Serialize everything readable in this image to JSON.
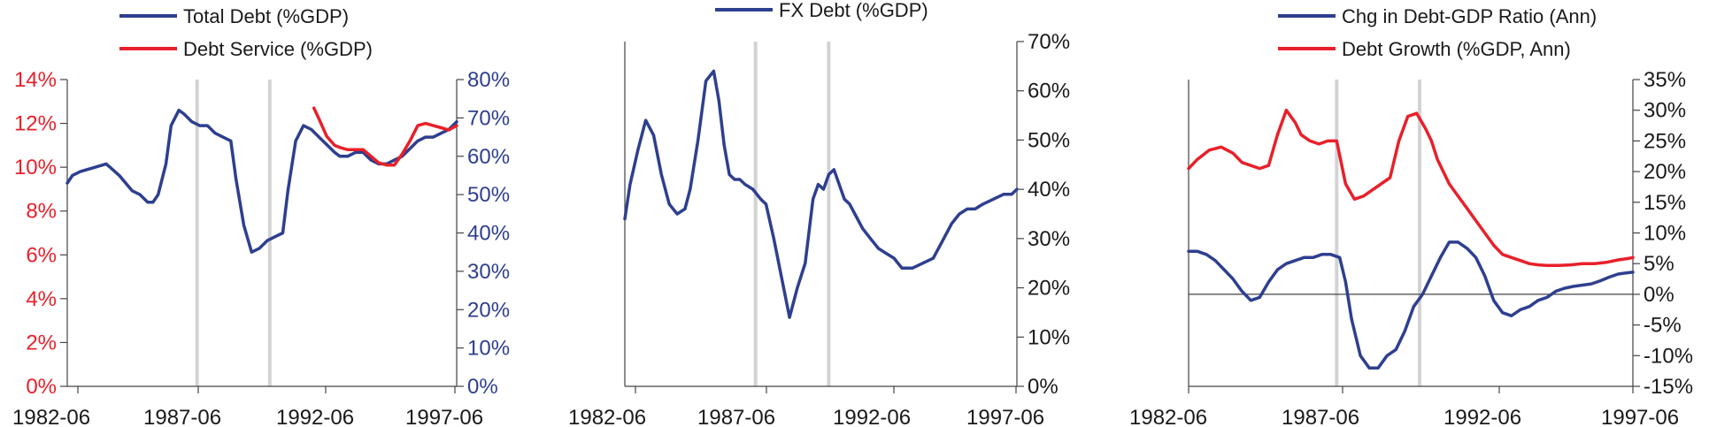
{
  "colors": {
    "blue": "#2E3F8F",
    "red": "#E8202A",
    "axis": "#444444",
    "recession": "#d3d3d3",
    "text": "#1a1a1a"
  },
  "chart_data": [
    {
      "type": "line",
      "title": "",
      "x_ticks": [
        "1982-06",
        "1987-06",
        "1992-06",
        "1997-06"
      ],
      "x_range": [
        1982.5,
        1997.5
      ],
      "recession_lines": [
        1987.5,
        1990.3
      ],
      "legend": [
        {
          "label": "Total Debt (%GDP)",
          "color": "#2E3F8F"
        },
        {
          "label": "Debt Service (%GDP)",
          "color": "#E8202A"
        }
      ],
      "y_left": {
        "ticks": [
          "0%",
          "2%",
          "4%",
          "6%",
          "8%",
          "10%",
          "12%",
          "14%"
        ],
        "range": [
          0,
          14
        ],
        "color": "#E8202A"
      },
      "y_right": {
        "ticks": [
          "0%",
          "10%",
          "20%",
          "30%",
          "40%",
          "50%",
          "60%",
          "70%",
          "80%"
        ],
        "range": [
          0,
          80
        ],
        "color": "#2E3F8F"
      },
      "series": [
        {
          "name": "Total Debt (%GDP)",
          "axis": "right",
          "color": "#2E3F8F",
          "x": [
            1982.5,
            1982.7,
            1983.0,
            1983.5,
            1984.0,
            1984.5,
            1985.0,
            1985.3,
            1985.6,
            1985.8,
            1986.0,
            1986.3,
            1986.5,
            1986.8,
            1987.0,
            1987.3,
            1987.6,
            1987.9,
            1988.2,
            1988.5,
            1988.8,
            1989.0,
            1989.3,
            1989.6,
            1989.9,
            1990.2,
            1990.5,
            1990.8,
            1991.0,
            1991.3,
            1991.6,
            1991.9,
            1992.2,
            1992.5,
            1992.8,
            1993.0,
            1993.3,
            1993.6,
            1993.9,
            1994.2,
            1994.5,
            1994.8,
            1995.1,
            1995.4,
            1995.7,
            1996.0,
            1996.3,
            1996.6,
            1996.9,
            1997.2,
            1997.5
          ],
          "y": [
            53,
            55,
            56,
            57,
            58,
            55,
            51,
            50,
            48,
            48,
            50,
            58,
            68,
            72,
            71,
            69,
            68,
            68,
            66,
            65,
            64,
            54,
            42,
            35,
            36,
            38,
            39,
            40,
            51,
            64,
            68,
            67,
            65,
            63,
            61,
            60,
            60,
            61,
            61,
            59,
            58,
            58,
            59,
            60,
            62,
            64,
            65,
            65,
            66,
            67,
            69
          ]
        },
        {
          "name": "Debt Service (%GDP)",
          "axis": "left",
          "color": "#E8202A",
          "x": [
            1992.0,
            1992.2,
            1992.5,
            1992.8,
            1993.0,
            1993.3,
            1993.6,
            1993.9,
            1994.2,
            1994.5,
            1994.8,
            1995.1,
            1995.4,
            1995.7,
            1996.0,
            1996.3,
            1996.6,
            1996.9,
            1997.2,
            1997.5
          ],
          "y": [
            12.7,
            12.2,
            11.4,
            11.0,
            10.9,
            10.8,
            10.8,
            10.8,
            10.5,
            10.2,
            10.1,
            10.1,
            10.6,
            11.2,
            11.9,
            12.0,
            11.9,
            11.8,
            11.7,
            11.9
          ]
        }
      ]
    },
    {
      "type": "line",
      "title": "",
      "x_ticks": [
        "1982-06",
        "1987-06",
        "1992-06",
        "1997-06"
      ],
      "x_range": [
        1982.5,
        1997.5
      ],
      "recession_lines": [
        1987.5,
        1990.3
      ],
      "legend": [
        {
          "label": "FX Debt (%GDP)",
          "color": "#2E3F8F"
        }
      ],
      "y_right": {
        "ticks": [
          "0%",
          "10%",
          "20%",
          "30%",
          "40%",
          "50%",
          "60%",
          "70%"
        ],
        "range": [
          0,
          70
        ]
      },
      "series": [
        {
          "name": "FX Debt (%GDP)",
          "axis": "right",
          "color": "#2E3F8F",
          "x": [
            1982.5,
            1982.7,
            1983.0,
            1983.3,
            1983.6,
            1983.9,
            1984.2,
            1984.5,
            1984.8,
            1985.0,
            1985.3,
            1985.6,
            1985.9,
            1986.1,
            1986.3,
            1986.5,
            1986.7,
            1986.9,
            1987.1,
            1987.4,
            1987.7,
            1987.9,
            1988.2,
            1988.5,
            1988.8,
            1989.1,
            1989.4,
            1989.7,
            1989.9,
            1990.1,
            1990.3,
            1990.5,
            1990.7,
            1990.9,
            1991.1,
            1991.3,
            1991.6,
            1991.9,
            1992.2,
            1992.5,
            1992.8,
            1993.1,
            1993.5,
            1993.9,
            1994.3,
            1994.7,
            1995.0,
            1995.3,
            1995.6,
            1995.9,
            1996.2,
            1996.6,
            1997.0,
            1997.3,
            1997.5
          ],
          "y": [
            34,
            41,
            48,
            54,
            51,
            43,
            37,
            35,
            36,
            40,
            50,
            62,
            64,
            58,
            49,
            43,
            42,
            42,
            41,
            40,
            38,
            37,
            30,
            22,
            14,
            20,
            25,
            38,
            41,
            40,
            43,
            44,
            41,
            38,
            37,
            35,
            32,
            30,
            28,
            27,
            26,
            24,
            24,
            25,
            26,
            30,
            33,
            35,
            36,
            36,
            37,
            38,
            39,
            39,
            40
          ]
        }
      ]
    },
    {
      "type": "line",
      "title": "",
      "x_ticks": [
        "1982-06",
        "1987-06",
        "1992-06",
        "1997-06"
      ],
      "x_range": [
        1982.5,
        1997.5
      ],
      "recession_lines": [
        1987.5,
        1990.3
      ],
      "legend": [
        {
          "label": "Chg in Debt-GDP Ratio (Ann)",
          "color": "#2E3F8F"
        },
        {
          "label": "Debt Growth (%GDP, Ann)",
          "color": "#E8202A"
        }
      ],
      "y_right": {
        "ticks": [
          "-15%",
          "-10%",
          "-5%",
          "0%",
          "5%",
          "10%",
          "15%",
          "20%",
          "25%",
          "30%",
          "35%"
        ],
        "range": [
          -15,
          35
        ]
      },
      "series": [
        {
          "name": "Debt Growth (%GDP, Ann)",
          "axis": "right",
          "color": "#E8202A",
          "x": [
            1982.5,
            1982.8,
            1983.2,
            1983.6,
            1984.0,
            1984.3,
            1984.6,
            1984.9,
            1985.2,
            1985.5,
            1985.8,
            1986.1,
            1986.3,
            1986.6,
            1986.9,
            1987.2,
            1987.5,
            1987.8,
            1988.1,
            1988.4,
            1988.7,
            1989.0,
            1989.3,
            1989.6,
            1989.9,
            1990.2,
            1990.5,
            1990.7,
            1990.9,
            1991.1,
            1991.3,
            1991.6,
            1991.9,
            1992.2,
            1992.5,
            1992.8,
            1993.1,
            1993.4,
            1993.7,
            1994.0,
            1994.3,
            1994.6,
            1995.0,
            1995.4,
            1995.8,
            1996.2,
            1996.6,
            1997.0,
            1997.3,
            1997.5
          ],
          "y": [
            20.5,
            22,
            23.5,
            24,
            23,
            21.5,
            21,
            20.5,
            21,
            26,
            30,
            28,
            26,
            25,
            24.5,
            25,
            25,
            18,
            15.5,
            16,
            17,
            18,
            19,
            25,
            29,
            29.5,
            27,
            25,
            22,
            20,
            18,
            16,
            14,
            12,
            10,
            8,
            6.5,
            6,
            5.5,
            5,
            4.8,
            4.7,
            4.7,
            4.8,
            5,
            5,
            5.2,
            5.6,
            5.8,
            6
          ]
        },
        {
          "name": "Chg in Debt-GDP Ratio (Ann)",
          "axis": "right",
          "color": "#2E3F8F",
          "x": [
            1982.5,
            1982.8,
            1983.1,
            1983.4,
            1983.7,
            1984.0,
            1984.3,
            1984.6,
            1984.9,
            1985.2,
            1985.5,
            1985.8,
            1986.1,
            1986.4,
            1986.7,
            1987.0,
            1987.3,
            1987.6,
            1987.8,
            1988.0,
            1988.3,
            1988.6,
            1988.9,
            1989.2,
            1989.5,
            1989.8,
            1990.1,
            1990.4,
            1990.7,
            1991.0,
            1991.3,
            1991.6,
            1991.9,
            1992.2,
            1992.5,
            1992.8,
            1993.1,
            1993.4,
            1993.7,
            1994.0,
            1994.3,
            1994.6,
            1994.9,
            1995.2,
            1995.5,
            1995.8,
            1996.1,
            1996.4,
            1996.7,
            1997.0,
            1997.3,
            1997.5
          ],
          "y": [
            7,
            7,
            6.5,
            5.5,
            4,
            2.5,
            0.5,
            -1,
            -0.5,
            2,
            4,
            5,
            5.5,
            6,
            6,
            6.5,
            6.5,
            6,
            2,
            -4,
            -10,
            -12,
            -12,
            -10,
            -9,
            -6,
            -2,
            0,
            3,
            6,
            8.5,
            8.5,
            7.5,
            6,
            3,
            -1,
            -3,
            -3.5,
            -2.5,
            -2,
            -1,
            -0.5,
            0.5,
            1,
            1.3,
            1.5,
            1.7,
            2.2,
            2.8,
            3.3,
            3.5,
            3.6
          ]
        }
      ]
    }
  ]
}
